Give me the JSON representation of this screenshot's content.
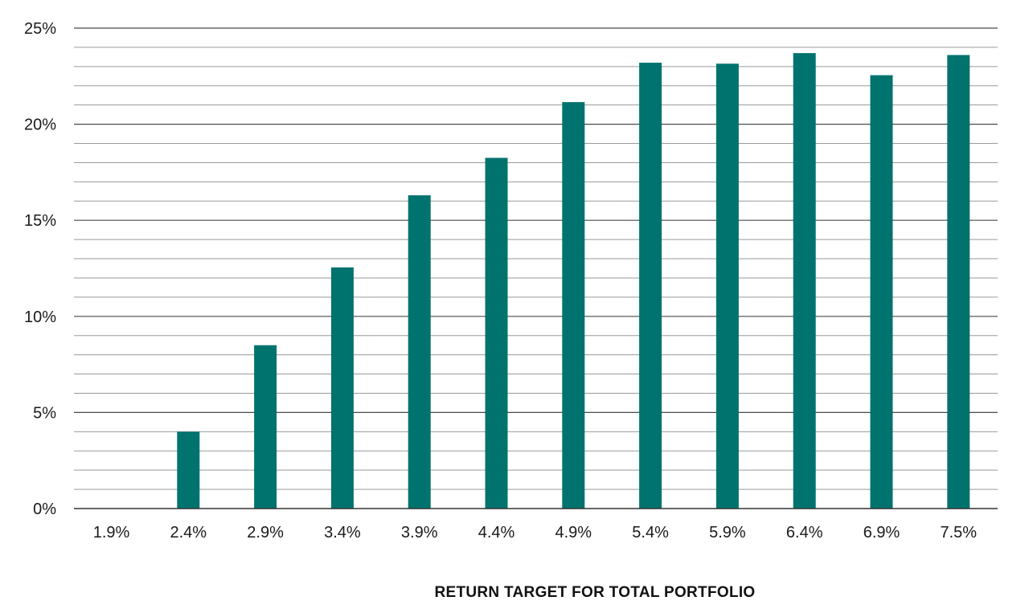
{
  "chart_data": {
    "type": "bar",
    "title": "",
    "xlabel": "RETURN TARGET FOR TOTAL PORTFOLIO",
    "ylabel": "",
    "categories": [
      "1.9%",
      "2.4%",
      "2.9%",
      "3.4%",
      "3.9%",
      "4.4%",
      "4.9%",
      "5.4%",
      "5.9%",
      "6.4%",
      "6.9%",
      "7.5%"
    ],
    "values": [
      0,
      4.0,
      8.5,
      12.55,
      16.3,
      18.25,
      21.15,
      23.2,
      23.15,
      23.7,
      22.55,
      23.6
    ],
    "ylim": [
      0,
      25
    ],
    "yticks": [
      0,
      5,
      10,
      15,
      20,
      25
    ],
    "ytick_labels": [
      "0%",
      "5%",
      "10%",
      "15%",
      "20%",
      "25%"
    ],
    "minor_step": 1,
    "grid": true,
    "legend": "none",
    "bar_color": "#00736e"
  }
}
